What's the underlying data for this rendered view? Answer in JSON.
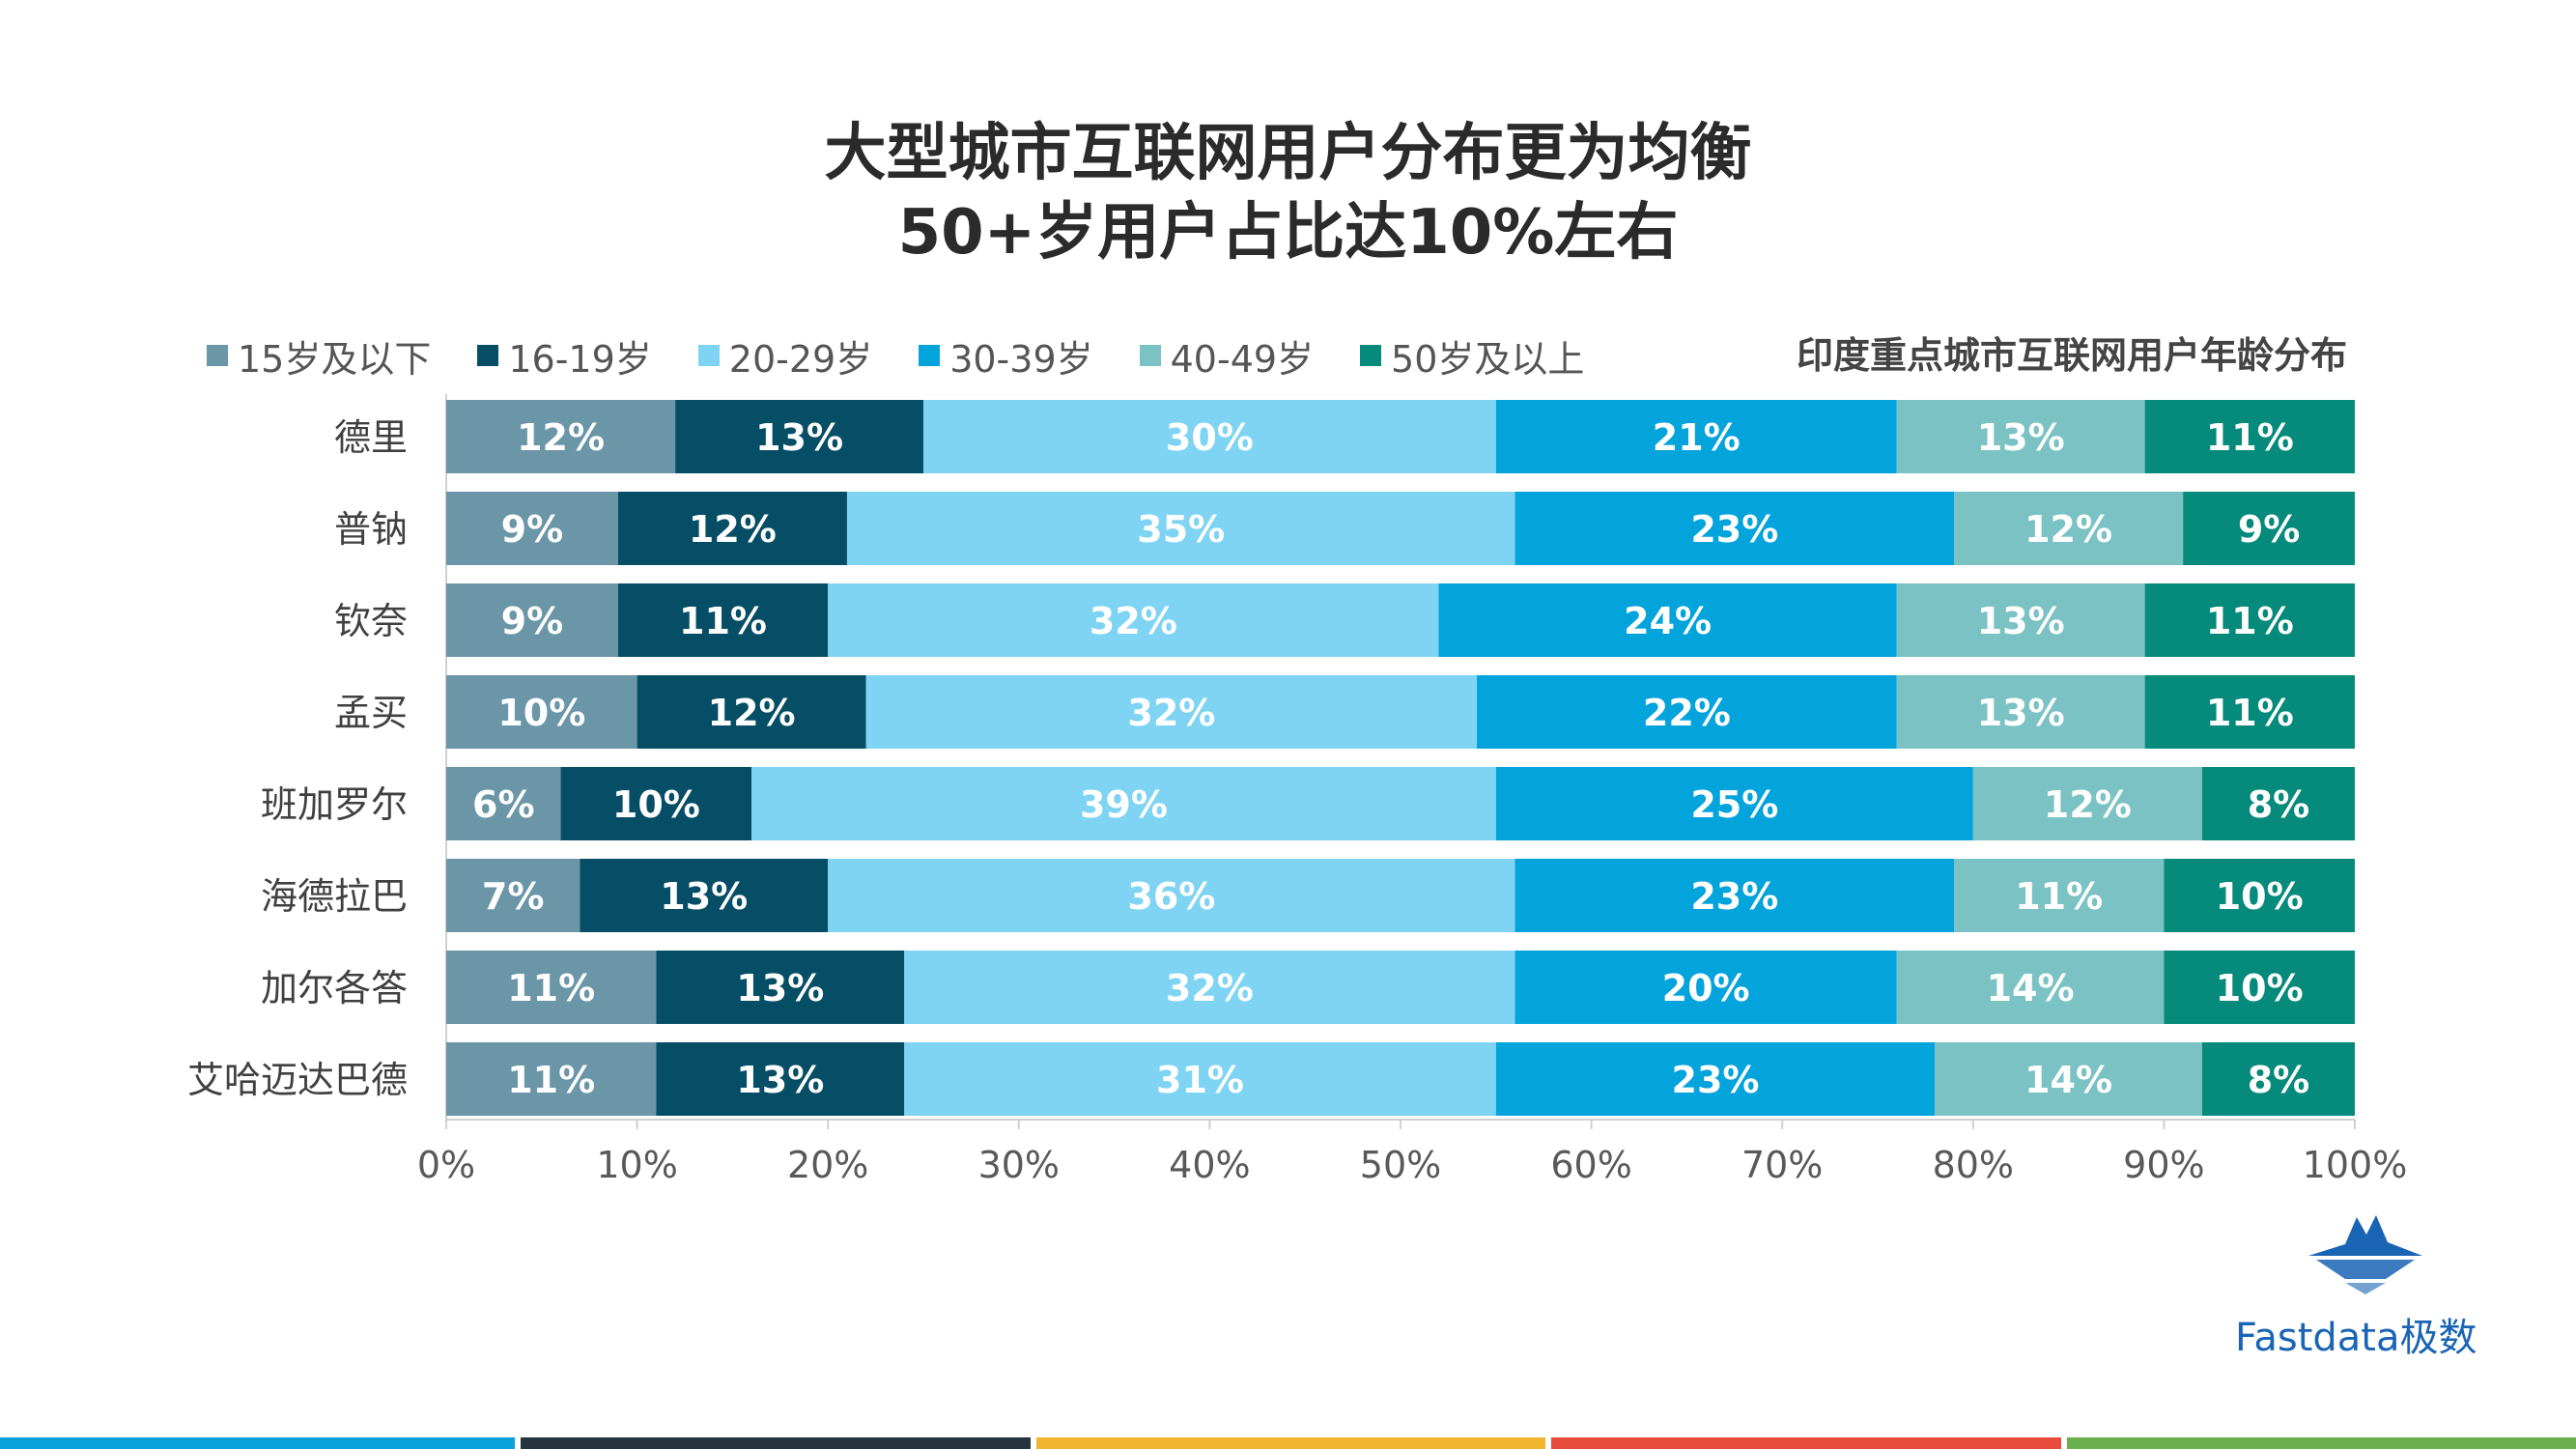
{
  "title_line1": "大型城市互联网用户分布更为均衡",
  "title_line2": "50+岁用户占比达10%左右",
  "chart_subtitle": "印度重点城市互联网用户年龄分布",
  "brand_name": "Fastdata极数",
  "icons": {
    "brand_logo": "iceberg-logo-icon"
  },
  "footer_colors": [
    "#0aa0dc",
    "#26343f",
    "#f2b530",
    "#e84c3d",
    "#6ab04c"
  ],
  "chart_data": {
    "type": "bar",
    "orientation": "horizontal",
    "stacked": "percent",
    "categories": [
      "德里",
      "普钠",
      "钦奈",
      "孟买",
      "班加罗尔",
      "海德拉巴",
      "加尔各答",
      "艾哈迈达巴德"
    ],
    "series": [
      {
        "name": "15岁及以下",
        "color": "#6a96a8",
        "values": [
          12,
          9,
          9,
          10,
          6,
          7,
          11,
          11
        ]
      },
      {
        "name": "16-19岁",
        "color": "#064e66",
        "values": [
          13,
          12,
          11,
          12,
          10,
          13,
          13,
          13
        ]
      },
      {
        "name": "20-29岁",
        "color": "#7fd4f3",
        "values": [
          30,
          35,
          32,
          32,
          39,
          36,
          32,
          31
        ]
      },
      {
        "name": "30-39岁",
        "color": "#03a3dc",
        "values": [
          21,
          23,
          24,
          22,
          25,
          23,
          20,
          23
        ]
      },
      {
        "name": "40-49岁",
        "color": "#7bc2c5",
        "values": [
          13,
          12,
          13,
          13,
          12,
          11,
          14,
          14
        ]
      },
      {
        "name": "50岁及以上",
        "color": "#068a7b",
        "values": [
          11,
          9,
          11,
          11,
          8,
          10,
          10,
          8
        ]
      }
    ],
    "x_ticks": [
      "0%",
      "10%",
      "20%",
      "30%",
      "40%",
      "50%",
      "60%",
      "70%",
      "80%",
      "90%",
      "100%"
    ],
    "xlim": [
      0,
      100
    ],
    "legend_position": "top-left",
    "grid": false
  }
}
